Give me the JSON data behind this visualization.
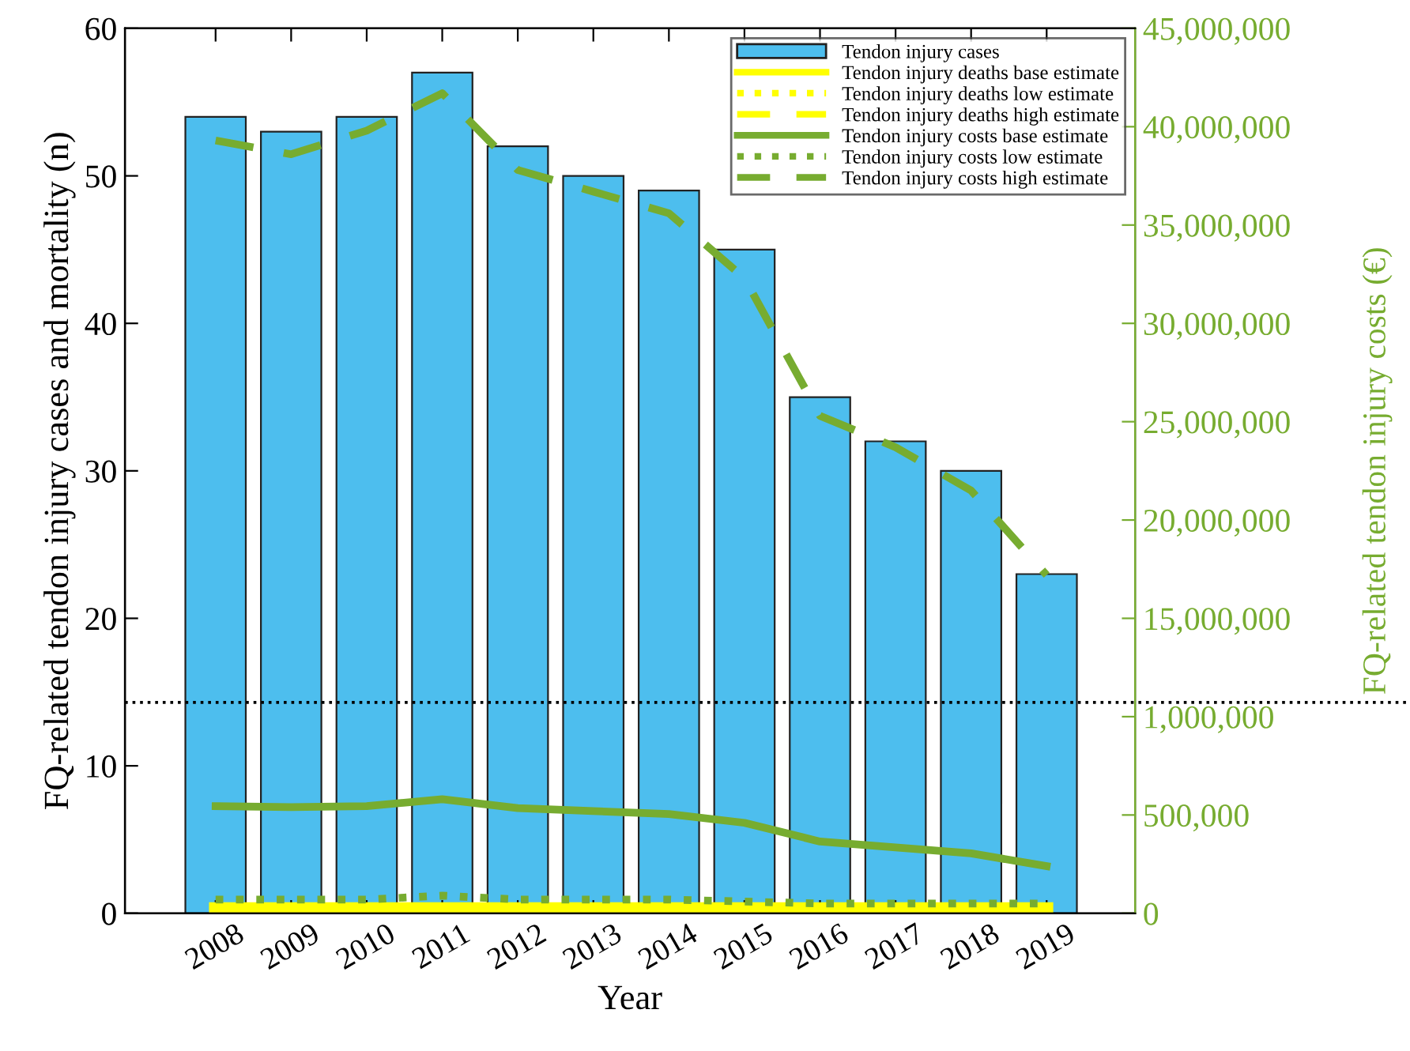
{
  "chart_data": {
    "type": "bar",
    "xlabel": "Year",
    "ylabel": "FQ-related tendon injury cases and mortality (n)",
    "y2label": "FQ-related tendon injury costs (€)",
    "categories": [
      "2008",
      "2009",
      "2010",
      "2011",
      "2012",
      "2013",
      "2014",
      "2015",
      "2016",
      "2017",
      "2018",
      "2019"
    ],
    "series": [
      {
        "name": "Tendon injury cases",
        "color": "#4dbeee",
        "values": [
          54,
          53,
          54,
          57,
          52,
          50,
          49,
          45,
          35,
          32,
          30,
          23
        ]
      },
      {
        "name": "Tendon injury deaths base estimate",
        "type": "line",
        "color": "#ffff00",
        "line_style": "solid",
        "values": [
          0.3,
          0.3,
          0.3,
          0.3,
          0.3,
          0.3,
          0.3,
          0.3,
          0.3,
          0.3,
          0.3,
          0.3
        ]
      },
      {
        "name": "Tendon injury deaths low estimate",
        "type": "line",
        "color": "#ffff00",
        "line_style": "dotted",
        "values": [
          null,
          null,
          null,
          null,
          null,
          null,
          null,
          null,
          null,
          null,
          null,
          null
        ]
      },
      {
        "name": "Tendon injury deaths high estimate",
        "type": "line",
        "color": "#ffff00",
        "line_style": "dashed",
        "values": [
          null,
          null,
          null,
          null,
          null,
          null,
          null,
          null,
          null,
          null,
          null,
          null
        ]
      },
      {
        "name": "Tendon injury costs base estimate",
        "type": "line",
        "axis": "y2",
        "color": "#77ac30",
        "line_style": "solid",
        "values": [
          545000,
          540000,
          545000,
          580000,
          535000,
          520000,
          505000,
          460000,
          365000,
          335000,
          305000,
          240000
        ]
      },
      {
        "name": "Tendon injury costs low estimate",
        "type": "line",
        "axis": "y2",
        "color": "#77ac30",
        "line_style": "dotted",
        "values": [
          70000,
          70000,
          70000,
          90000,
          70000,
          70000,
          70000,
          60000,
          50000,
          50000,
          50000,
          50000
        ]
      },
      {
        "name": "Tendon injury costs high estimate",
        "type": "line",
        "axis": "y3",
        "color": "#77ac30",
        "line_style": "dashed",
        "values": [
          39300000,
          38600000,
          39800000,
          41700000,
          37800000,
          36700000,
          35600000,
          32300000,
          25300000,
          23700000,
          21500000,
          17200000
        ]
      }
    ],
    "ylim": [
      0,
      60
    ],
    "yticks": [
      0,
      10,
      20,
      30,
      40,
      50,
      60
    ],
    "y2lim": [
      0,
      4500000
    ],
    "y2ticks": [
      {
        "value": 0,
        "label": "0"
      },
      {
        "value": 500000,
        "label": "500,000"
      },
      {
        "value": 1000000,
        "label": "1,000,000"
      }
    ],
    "y3lim": [
      0,
      45000000
    ],
    "y3ticks": [
      {
        "value": 15000000,
        "label": "15,000,000"
      },
      {
        "value": 20000000,
        "label": "20,000,000"
      },
      {
        "value": 25000000,
        "label": "25,000,000"
      },
      {
        "value": 30000000,
        "label": "30,000,000"
      },
      {
        "value": 35000000,
        "label": "35,000,000"
      },
      {
        "value": 40000000,
        "label": "40,000,000"
      },
      {
        "value": 45000000,
        "label": "45,000,000"
      }
    ],
    "ref_lines": [
      {
        "axis": "y",
        "value": 14.3,
        "color": "#000000",
        "line_style": "dotted"
      }
    ],
    "legend": "top right",
    "grid": false
  }
}
